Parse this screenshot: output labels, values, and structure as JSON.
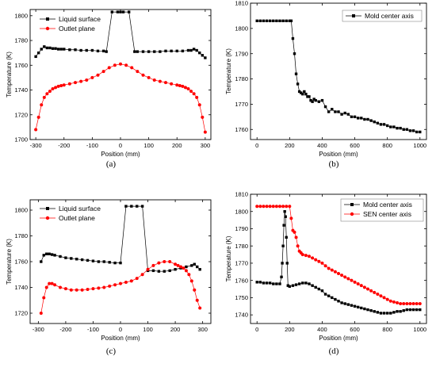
{
  "chart_data": [
    {
      "type": "line",
      "caption": "(a)",
      "xlabel": "Position (mm)",
      "ylabel": "Temperature (K)",
      "xlim": [
        -320,
        320
      ],
      "ylim": [
        1700,
        1805
      ],
      "xticks": [
        -300,
        -200,
        -100,
        0,
        100,
        200,
        300
      ],
      "yticks": [
        1700,
        1720,
        1740,
        1760,
        1780,
        1800
      ],
      "legend": "top-left",
      "series": [
        {
          "name": "Liquid surface",
          "color": "#000000",
          "marker": "square",
          "x": [
            -300,
            -290,
            -280,
            -270,
            -260,
            -250,
            -240,
            -230,
            -220,
            -210,
            -200,
            -180,
            -160,
            -140,
            -120,
            -100,
            -80,
            -60,
            -50,
            -30,
            -10,
            0,
            10,
            30,
            50,
            60,
            80,
            100,
            120,
            140,
            160,
            180,
            200,
            220,
            240,
            250,
            260,
            270,
            280,
            290,
            300
          ],
          "y": [
            1767,
            1770,
            1773,
            1775,
            1774,
            1774,
            1773.5,
            1773.5,
            1773,
            1773,
            1773,
            1772.5,
            1772.5,
            1772,
            1772,
            1772,
            1771.5,
            1771.5,
            1771,
            1803,
            1803,
            1803,
            1803,
            1803,
            1771,
            1771,
            1771,
            1771,
            1771,
            1771,
            1771.5,
            1771.5,
            1771.5,
            1771.5,
            1772,
            1772,
            1773,
            1772,
            1770,
            1768,
            1766
          ]
        },
        {
          "name": "Outlet plane",
          "color": "#ff0000",
          "marker": "circle",
          "x": [
            -300,
            -290,
            -280,
            -270,
            -260,
            -250,
            -240,
            -230,
            -220,
            -210,
            -200,
            -180,
            -160,
            -140,
            -120,
            -100,
            -80,
            -60,
            -40,
            -20,
            0,
            20,
            40,
            60,
            80,
            100,
            120,
            140,
            160,
            180,
            200,
            210,
            220,
            230,
            240,
            250,
            260,
            270,
            280,
            290,
            300
          ],
          "y": [
            1708,
            1718,
            1728,
            1734,
            1737,
            1739,
            1741,
            1742,
            1743,
            1743.5,
            1744,
            1745,
            1746,
            1747,
            1748,
            1750,
            1752,
            1755,
            1758,
            1760,
            1761,
            1760,
            1758,
            1755,
            1752,
            1750,
            1748,
            1747,
            1746,
            1745,
            1744,
            1743.5,
            1743,
            1742,
            1741,
            1739,
            1737,
            1734,
            1728,
            1718,
            1706
          ]
        }
      ]
    },
    {
      "type": "line",
      "caption": "(b)",
      "xlabel": "Position (mm)",
      "ylabel": "Temperature (K)",
      "xlim": [
        -40,
        1040
      ],
      "ylim": [
        1756,
        1810
      ],
      "xticks": [
        0,
        200,
        400,
        600,
        800,
        1000
      ],
      "yticks": [
        1760,
        1770,
        1780,
        1790,
        1800,
        1810
      ],
      "legend": "top-right",
      "series": [
        {
          "name": "Mold center axis",
          "color": "#000000",
          "marker": "square",
          "x": [
            0,
            20,
            40,
            60,
            80,
            100,
            120,
            140,
            160,
            180,
            200,
            210,
            220,
            230,
            240,
            250,
            260,
            270,
            280,
            290,
            300,
            310,
            320,
            330,
            340,
            350,
            360,
            380,
            400,
            420,
            440,
            460,
            480,
            500,
            520,
            540,
            560,
            580,
            600,
            620,
            640,
            660,
            680,
            700,
            720,
            740,
            760,
            780,
            800,
            820,
            840,
            860,
            880,
            900,
            920,
            940,
            960,
            980,
            1000
          ],
          "y": [
            1803,
            1803,
            1803,
            1803,
            1803,
            1803,
            1803,
            1803,
            1803,
            1803,
            1803,
            1803,
            1796,
            1790,
            1782,
            1778,
            1775,
            1774.5,
            1774,
            1775,
            1774,
            1773,
            1773,
            1771.5,
            1771,
            1772,
            1771.5,
            1771,
            1771.5,
            1769,
            1767,
            1768,
            1767,
            1767,
            1766,
            1766.5,
            1766,
            1765,
            1765,
            1764.5,
            1764.5,
            1764,
            1764,
            1763.5,
            1763,
            1762.5,
            1762,
            1762,
            1761.5,
            1761,
            1761,
            1760.5,
            1760.5,
            1760,
            1760,
            1759.5,
            1759.5,
            1759,
            1759
          ]
        }
      ]
    },
    {
      "type": "line",
      "caption": "(c)",
      "xlabel": "Position (mm)",
      "ylabel": "Temperature (K)",
      "xlim": [
        -330,
        330
      ],
      "ylim": [
        1712,
        1808
      ],
      "xticks": [
        -300,
        -200,
        -100,
        0,
        100,
        200,
        300
      ],
      "yticks": [
        1720,
        1740,
        1760,
        1780,
        1800
      ],
      "legend": "top-left",
      "series": [
        {
          "name": "Liquid surface",
          "color": "#000000",
          "marker": "square",
          "x": [
            -290,
            -280,
            -270,
            -260,
            -250,
            -240,
            -220,
            -200,
            -180,
            -160,
            -140,
            -120,
            -100,
            -80,
            -60,
            -40,
            -20,
            0,
            20,
            40,
            60,
            80,
            100,
            120,
            140,
            160,
            180,
            200,
            220,
            240,
            260,
            270,
            280,
            290
          ],
          "y": [
            1760,
            1765,
            1766,
            1766,
            1765.5,
            1765,
            1764,
            1763,
            1762.5,
            1762,
            1761.5,
            1761,
            1760.5,
            1760,
            1760,
            1759.5,
            1759,
            1759,
            1803,
            1803,
            1803,
            1803,
            1753,
            1753,
            1752.5,
            1752.5,
            1753,
            1754,
            1755,
            1756,
            1757,
            1758,
            1756,
            1754
          ]
        },
        {
          "name": "Outlet plane",
          "color": "#ff0000",
          "marker": "circle",
          "x": [
            -290,
            -280,
            -270,
            -260,
            -250,
            -240,
            -220,
            -200,
            -180,
            -160,
            -140,
            -120,
            -100,
            -80,
            -60,
            -40,
            -20,
            0,
            20,
            40,
            60,
            80,
            100,
            120,
            140,
            160,
            180,
            200,
            210,
            220,
            230,
            240,
            250,
            260,
            270,
            280,
            290
          ],
          "y": [
            1720,
            1732,
            1740,
            1743,
            1743,
            1742,
            1740,
            1739,
            1738,
            1738,
            1738,
            1738.5,
            1739,
            1739.5,
            1740,
            1741,
            1742,
            1743,
            1744,
            1745,
            1747,
            1750,
            1754,
            1757,
            1759,
            1760,
            1760,
            1758,
            1757,
            1756,
            1755,
            1753,
            1750,
            1745,
            1738,
            1730,
            1724
          ]
        }
      ]
    },
    {
      "type": "line",
      "caption": "(d)",
      "xlabel": "Position (mm)",
      "ylabel": "Temperature (K)",
      "xlim": [
        -40,
        1040
      ],
      "ylim": [
        1735,
        1810
      ],
      "xticks": [
        0,
        200,
        400,
        600,
        800,
        1000
      ],
      "yticks": [
        1740,
        1750,
        1760,
        1770,
        1780,
        1790,
        1800,
        1810
      ],
      "legend": "top-right",
      "series": [
        {
          "name": "Mold center axis",
          "color": "#000000",
          "marker": "square",
          "x": [
            0,
            20,
            40,
            60,
            80,
            100,
            120,
            140,
            150,
            155,
            160,
            165,
            170,
            175,
            180,
            185,
            190,
            200,
            220,
            240,
            260,
            280,
            300,
            320,
            340,
            360,
            380,
            400,
            420,
            440,
            460,
            480,
            500,
            520,
            540,
            560,
            580,
            600,
            620,
            640,
            660,
            680,
            700,
            720,
            740,
            760,
            780,
            800,
            820,
            840,
            860,
            880,
            900,
            920,
            940,
            960,
            980,
            1000
          ],
          "y": [
            1759,
            1759,
            1758.5,
            1758.5,
            1758.5,
            1758,
            1758,
            1758,
            1762,
            1770,
            1780,
            1792,
            1800,
            1797,
            1785,
            1770,
            1757,
            1756.5,
            1757,
            1757.5,
            1758,
            1758.5,
            1758.5,
            1758,
            1757,
            1756,
            1755,
            1754,
            1752,
            1751,
            1750,
            1749,
            1748,
            1747,
            1746.5,
            1746,
            1745.5,
            1745,
            1744.5,
            1744,
            1743.5,
            1743,
            1742.5,
            1742,
            1741.5,
            1741,
            1741,
            1741,
            1741,
            1741.5,
            1742,
            1742,
            1742.5,
            1743,
            1743,
            1743,
            1743,
            1743
          ]
        },
        {
          "name": "SEN center axis",
          "color": "#ff0000",
          "marker": "circle",
          "x": [
            0,
            20,
            40,
            60,
            80,
            100,
            120,
            140,
            160,
            180,
            200,
            210,
            220,
            230,
            240,
            250,
            260,
            270,
            280,
            300,
            320,
            340,
            360,
            380,
            400,
            420,
            440,
            460,
            480,
            500,
            520,
            540,
            560,
            580,
            600,
            620,
            640,
            660,
            680,
            700,
            720,
            740,
            760,
            780,
            800,
            820,
            840,
            860,
            880,
            900,
            920,
            940,
            960,
            980,
            1000
          ],
          "y": [
            1803,
            1803,
            1803,
            1803,
            1803,
            1803,
            1803,
            1803,
            1803,
            1803,
            1803,
            1796,
            1789,
            1788,
            1785,
            1780,
            1777,
            1776,
            1775,
            1774.5,
            1774,
            1773,
            1772,
            1771,
            1770,
            1768.5,
            1767,
            1766,
            1765,
            1764,
            1763,
            1762,
            1761,
            1760,
            1759,
            1758,
            1757,
            1756,
            1755,
            1754,
            1753,
            1752,
            1751,
            1750,
            1749,
            1748,
            1747.5,
            1747,
            1746.5,
            1746.5,
            1746.5,
            1746.5,
            1746.5,
            1746.5,
            1746.5
          ]
        }
      ]
    }
  ]
}
